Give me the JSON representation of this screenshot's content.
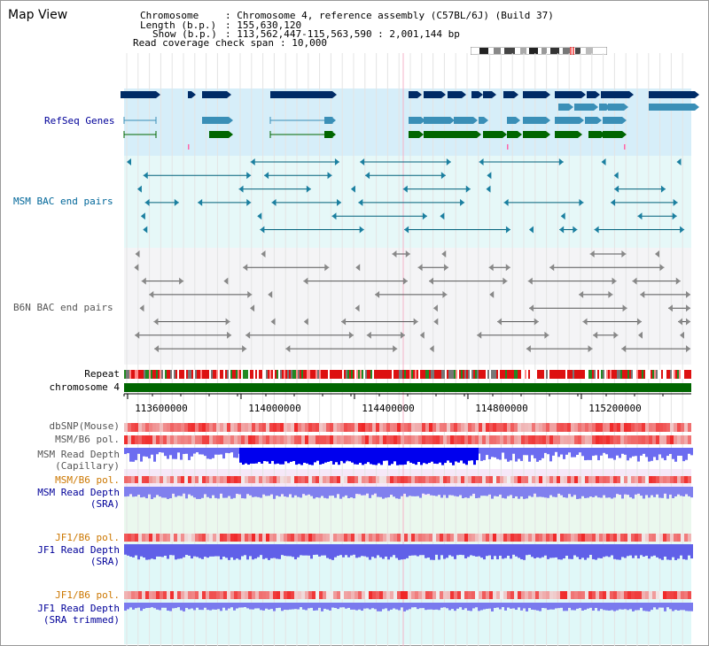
{
  "view_title": "Map View",
  "header": {
    "chromosome_label": "Chromosome",
    "chromosome_value": ": Chromosome 4, reference assembly (C57BL/6J) (Build 37)",
    "length_label": "Length (b.p.)",
    "length_value": ": 155,630,120",
    "show_label": "Show (b.p.)",
    "show_value": ": 113,562,447-115,563,590 : 2,001,144 bp",
    "read_cov_label": "Read coverage check span",
    "read_cov_value": ": 10,000"
  },
  "tracks": {
    "refseq": "RefSeq Genes",
    "msm_bac": "MSM BAC end pairs",
    "b6n_bac": "B6N BAC end pairs",
    "repeat": "Repeat",
    "chromosome": "chromosome 4",
    "dbsnp": "dbSNP(Mouse)",
    "msm_b6_pol_1": "MSM/B6 pol.",
    "msm_depth_cap_1": "MSM Read Depth",
    "msm_depth_cap_2": "(Capillary)",
    "msm_b6_pol_2": "MSM/B6 pol.",
    "msm_depth_sra_1": "MSM Read Depth",
    "msm_depth_sra_2": "(SRA)",
    "jf1_pol_1": "JF1/B6 pol.",
    "jf1_depth_sra_1": "JF1 Read Depth",
    "jf1_depth_sra_2": "(SRA)",
    "jf1_pol_2": "JF1/B6 pol.",
    "jf1_depth_trim_1": "JF1 Read Depth",
    "jf1_depth_trim_2": "(SRA trimmed)"
  },
  "axis_ticks": [
    "113600000",
    "114000000",
    "114400000",
    "114800000",
    "115200000"
  ],
  "colors": {
    "navy_label": "#000099",
    "teal_label": "#006699",
    "gray_label": "#555555",
    "orange_label": "#cc7700",
    "gene_dark": "#002b66",
    "gene_mid": "#3a8fb7",
    "gene_green": "#006600",
    "refseq_bg": "#d6eef9",
    "msm_bg": "#e6f8f8",
    "b6n_bg": "#f4f4f6",
    "chrom_bar": "#006600"
  }
}
